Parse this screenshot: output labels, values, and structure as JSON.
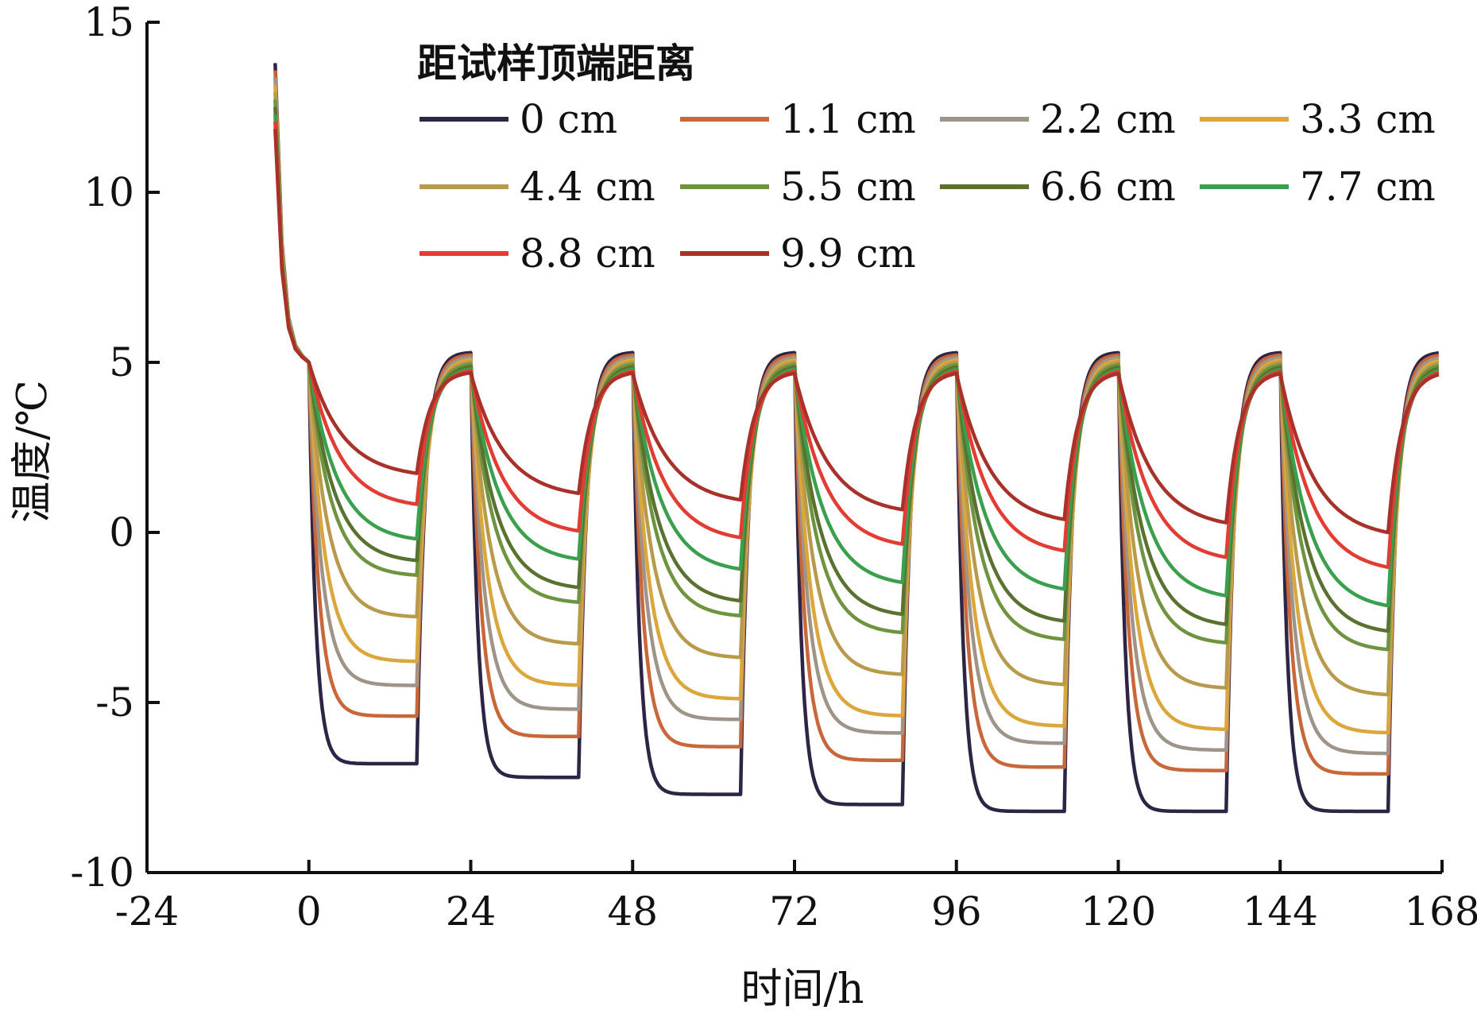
{
  "chart_data": {
    "type": "line",
    "xlabel": "时间/h",
    "ylabel": "温度/℃",
    "xlim": [
      -24,
      168
    ],
    "ylim": [
      -10,
      15
    ],
    "x_ticks": [
      -24,
      0,
      24,
      48,
      72,
      96,
      120,
      144,
      168
    ],
    "y_ticks": [
      -10,
      -5,
      0,
      5,
      10,
      15
    ],
    "legend": {
      "title": "距试样顶端距离",
      "position": "top-right"
    },
    "cycle": {
      "period_h": 24,
      "freeze_start_h": [
        0,
        24,
        48,
        72,
        96,
        120,
        144
      ],
      "freeze_duration_h": 16,
      "thaw_temperature_c": 5.3
    },
    "initial_curve": {
      "x": [
        -5,
        -4,
        -3,
        -2,
        -1,
        0
      ],
      "y": [
        13.8,
        8.5,
        6.3,
        5.5,
        5.2,
        5.0
      ]
    },
    "series": [
      {
        "name": "0 cm",
        "color": "#2e2546",
        "freeze_min": [
          -6.8,
          -7.2,
          -7.7,
          -8.0,
          -8.2,
          -8.2,
          -8.2
        ]
      },
      {
        "name": "1.1 cm",
        "color": "#c8683a",
        "freeze_min": [
          -5.4,
          -6.0,
          -6.3,
          -6.7,
          -6.9,
          -7.0,
          -7.1
        ]
      },
      {
        "name": "2.2 cm",
        "color": "#9e9488",
        "freeze_min": [
          -4.5,
          -5.2,
          -5.5,
          -5.9,
          -6.2,
          -6.4,
          -6.5
        ]
      },
      {
        "name": "3.3 cm",
        "color": "#dba63c",
        "freeze_min": [
          -3.8,
          -4.5,
          -4.9,
          -5.4,
          -5.7,
          -5.8,
          -5.9
        ]
      },
      {
        "name": "4.4 cm",
        "color": "#b89a4c",
        "freeze_min": [
          -2.5,
          -3.3,
          -3.7,
          -4.2,
          -4.5,
          -4.6,
          -4.8
        ]
      },
      {
        "name": "5.5 cm",
        "color": "#6f9440",
        "freeze_min": [
          -1.3,
          -2.1,
          -2.5,
          -3.0,
          -3.2,
          -3.3,
          -3.5
        ]
      },
      {
        "name": "6.6 cm",
        "color": "#5a7230",
        "freeze_min": [
          -0.9,
          -1.7,
          -2.1,
          -2.5,
          -2.7,
          -2.8,
          -3.0
        ]
      },
      {
        "name": "7.7 cm",
        "color": "#3aa04e",
        "freeze_min": [
          -0.3,
          -0.9,
          -1.2,
          -1.6,
          -1.8,
          -2.0,
          -2.3
        ]
      },
      {
        "name": "8.8 cm",
        "color": "#e23c33",
        "freeze_min": [
          0.7,
          -0.1,
          -0.3,
          -0.5,
          -0.7,
          -0.9,
          -1.2
        ]
      },
      {
        "name": "9.9 cm",
        "color": "#a83229",
        "freeze_min": [
          1.6,
          1.0,
          0.8,
          0.5,
          0.2,
          0.1,
          -0.2
        ]
      }
    ]
  }
}
